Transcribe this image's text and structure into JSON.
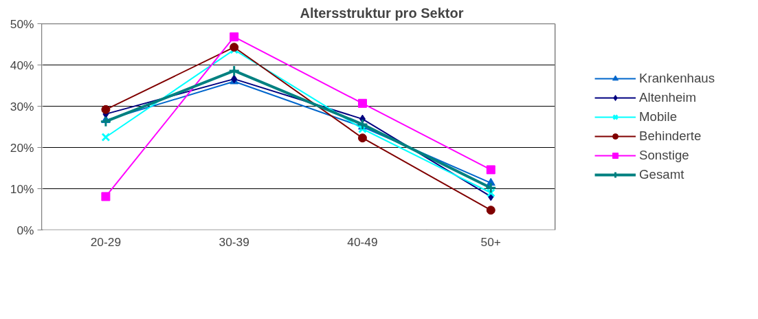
{
  "chart_data": {
    "type": "line",
    "title": "Altersstruktur pro Sektor",
    "categories": [
      "20-29",
      "30-39",
      "40-49",
      "50+"
    ],
    "ylim": [
      0,
      0.5
    ],
    "yticks": [
      {
        "value": 0,
        "label": "0%"
      },
      {
        "value": 0.1,
        "label": "10%"
      },
      {
        "value": 0.2,
        "label": "20%"
      },
      {
        "value": 0.3,
        "label": "30%"
      },
      {
        "value": 0.4,
        "label": "40%"
      },
      {
        "value": 0.5,
        "label": "50%"
      }
    ],
    "grid": "y",
    "legend": "right",
    "line_style": "solid",
    "series": [
      {
        "name": "Krankenhaus",
        "color": "#0066cc",
        "marker": "triangle",
        "values": [
          0.266,
          0.36,
          0.25,
          0.114
        ]
      },
      {
        "name": "Altenheim",
        "color": "#000080",
        "marker": "diamond",
        "values": [
          0.281,
          0.366,
          0.269,
          0.081
        ]
      },
      {
        "name": "Mobile",
        "color": "#00ffff",
        "marker": "x",
        "values": [
          0.225,
          0.437,
          0.245,
          0.09
        ]
      },
      {
        "name": "Behinderte",
        "color": "#800000",
        "marker": "circle",
        "values": [
          0.292,
          0.443,
          0.223,
          0.048
        ]
      },
      {
        "name": "Sonstige",
        "color": "#ff00ff",
        "marker": "square",
        "values": [
          0.081,
          0.468,
          0.307,
          0.146
        ]
      },
      {
        "name": "Gesamt",
        "color": "#008080",
        "marker": "cross",
        "values": [
          0.263,
          0.386,
          0.256,
          0.102
        ]
      }
    ]
  }
}
